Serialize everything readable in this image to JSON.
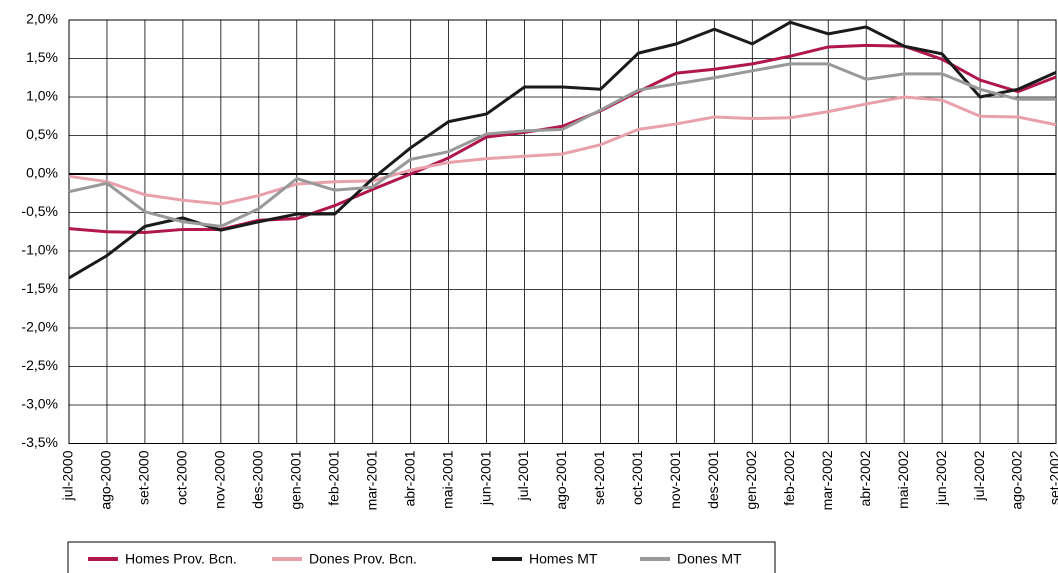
{
  "chart_data": {
    "type": "line",
    "categories": [
      "jul-2000",
      "ago-2000",
      "set-2000",
      "oct-2000",
      "nov-2000",
      "des-2000",
      "gen-2001",
      "feb-2001",
      "mar-2001",
      "abr-2001",
      "mai-2001",
      "jun-2001",
      "jul-2001",
      "ago-2001",
      "set-2001",
      "oct-2001",
      "nov-2001",
      "des-2001",
      "gen-2002",
      "feb-2002",
      "mar-2002",
      "abr-2002",
      "mai-2002",
      "jun-2002",
      "jul-2002",
      "ago-2002",
      "set-2002"
    ],
    "series": [
      {
        "name": "Homes Prov. Bcn.",
        "color": "#b0174f",
        "values": [
          -0.71,
          -0.75,
          -0.76,
          -0.72,
          -0.72,
          -0.6,
          -0.58,
          -0.41,
          -0.2,
          0.0,
          0.21,
          0.48,
          0.54,
          0.62,
          0.82,
          1.07,
          1.31,
          1.36,
          1.43,
          1.53,
          1.65,
          1.67,
          1.66,
          1.49,
          1.22,
          1.07,
          1.26
        ]
      },
      {
        "name": "Dones Prov. Bcn.",
        "color": "#e8a0ab",
        "values": [
          -0.03,
          -0.1,
          -0.27,
          -0.34,
          -0.39,
          -0.28,
          -0.13,
          -0.1,
          -0.09,
          0.05,
          0.15,
          0.2,
          0.23,
          0.26,
          0.38,
          0.58,
          0.65,
          0.74,
          0.72,
          0.73,
          0.81,
          0.91,
          1.0,
          0.96,
          0.75,
          0.74,
          0.64
        ]
      },
      {
        "name": "Homes MT",
        "color": "#1a1a1a",
        "values": [
          -1.35,
          -1.06,
          -0.68,
          -0.57,
          -0.73,
          -0.62,
          -0.52,
          -0.52,
          -0.06,
          0.34,
          0.68,
          0.78,
          1.13,
          1.13,
          1.1,
          1.57,
          1.69,
          1.88,
          1.69,
          1.97,
          1.82,
          1.91,
          1.66,
          1.56,
          1.0,
          1.1,
          1.32
        ]
      },
      {
        "name": "Dones MT",
        "color": "#999999",
        "values": [
          -0.23,
          -0.12,
          -0.49,
          -0.62,
          -0.68,
          -0.45,
          -0.06,
          -0.21,
          -0.17,
          0.19,
          0.29,
          0.52,
          0.56,
          0.58,
          0.83,
          1.09,
          1.17,
          1.25,
          1.34,
          1.43,
          1.43,
          1.23,
          1.3,
          1.3,
          1.1,
          0.97,
          0.97
        ]
      }
    ],
    "ylim": [
      -3.5,
      2.0
    ],
    "yticks": [
      {
        "value": -3.5,
        "label": "-3,5%"
      },
      {
        "value": -3.0,
        "label": "-3,0%"
      },
      {
        "value": -2.5,
        "label": "-2,5%"
      },
      {
        "value": -2.0,
        "label": "-2,0%"
      },
      {
        "value": -1.5,
        "label": "-1,5%"
      },
      {
        "value": -1.0,
        "label": "-1,0%"
      },
      {
        "value": -0.5,
        "label": "-0,5%"
      },
      {
        "value": 0.0,
        "label": "0,0%"
      },
      {
        "value": 0.5,
        "label": "0,5%"
      },
      {
        "value": 1.0,
        "label": "1,0%"
      },
      {
        "value": 1.5,
        "label": "1,5%"
      },
      {
        "value": 2.0,
        "label": "2,0%"
      }
    ],
    "grid": true,
    "legend": "bottom"
  }
}
